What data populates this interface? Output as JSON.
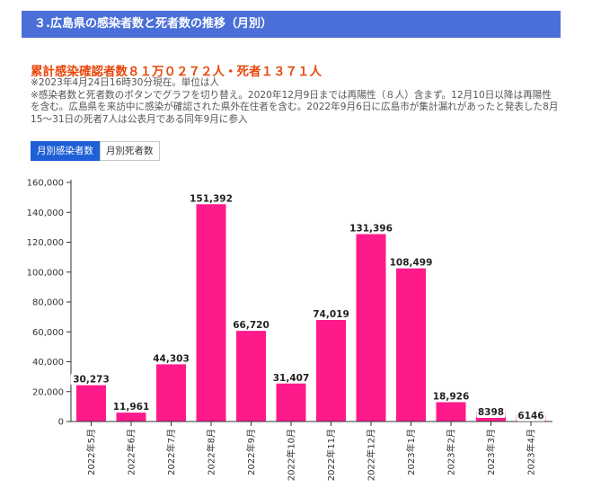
{
  "header": {
    "title": "３.広島県の感染者数と死者数の推移（月別）"
  },
  "summary": {
    "total_line": "累計感染確認者数８１万０２７２人・死者１３７１人",
    "notes": [
      "※2023年4月24日16時30分現在。単位は人",
      "※感染者数と死者数のボタンでグラフを切り替え。2020年12月9日までは再陽性（８人）含まず。12月10日以降は再陽性を含む。広島県を来訪中に感染が確認された県外在住者を含む。2022年9月6日に広島市が集計漏れがあったと発表した8月15～31日の死者7人は公表月である同年9月に参入"
    ]
  },
  "tabs": [
    {
      "label": "月別感染者数",
      "active": true
    },
    {
      "label": "月別死者数",
      "active": false
    }
  ],
  "colors": {
    "accent": "#4a6fd8",
    "bar": "#ff1a8c",
    "total_text": "#e8470a",
    "tab_active": "#1f5fd6"
  },
  "chart_data": {
    "type": "bar",
    "categories": [
      "2022年5月",
      "2022年6月",
      "2022年7月",
      "2022年8月",
      "2022年9月",
      "2022年10月",
      "2022年11月",
      "2022年12月",
      "2023年1月",
      "2023年2月",
      "2023年3月",
      "2023年4月"
    ],
    "values": [
      30273,
      11961,
      44303,
      151392,
      66720,
      31407,
      74019,
      131396,
      108499,
      18926,
      8398,
      6146
    ],
    "value_labels": [
      "30,273",
      "11,961",
      "44,303",
      "151,392",
      "66,720",
      "31,407",
      "74,019",
      "131,396",
      "108,499",
      "18,926",
      "8398",
      "6146"
    ],
    "ylim": [
      0,
      160000
    ],
    "yticks": [
      0,
      20000,
      40000,
      60000,
      80000,
      100000,
      120000,
      140000,
      160000
    ],
    "ytick_labels": [
      "0",
      "20,000",
      "40,000",
      "60,000",
      "80,000",
      "100,000",
      "120,000",
      "140,000",
      "160,000"
    ],
    "grid": false,
    "xlabel": "",
    "ylabel": ""
  }
}
